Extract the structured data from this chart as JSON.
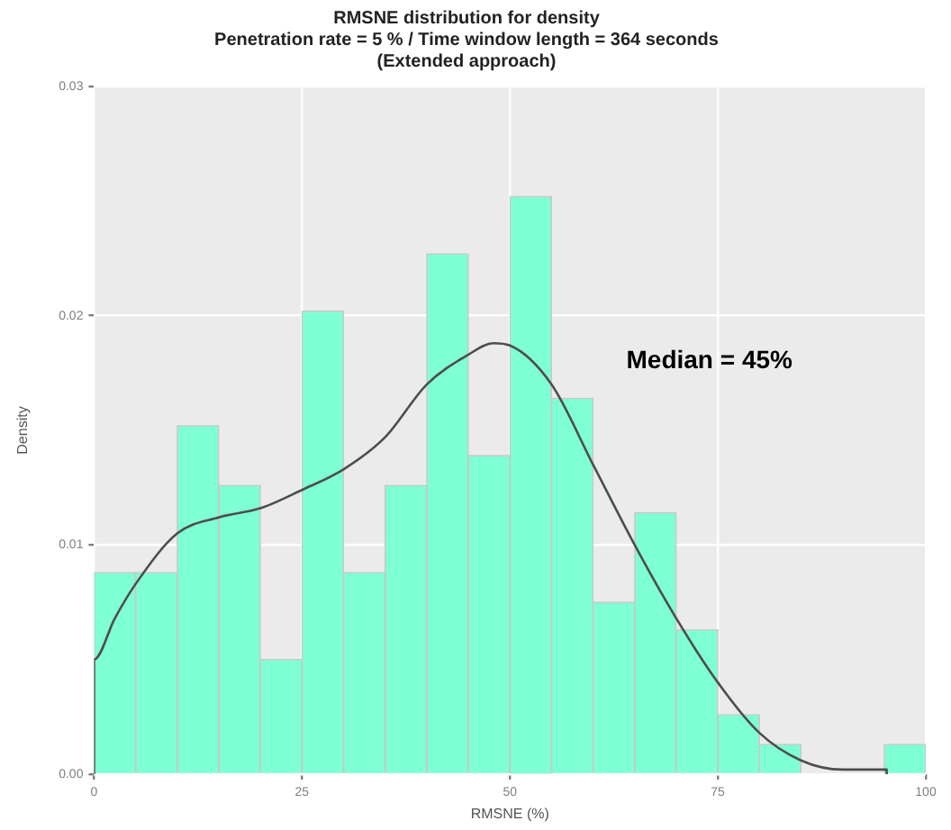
{
  "chart_data": {
    "type": "histogram",
    "title": "RMSNE distribution for density",
    "subtitle": [
      "Penetration rate = 5 % / Time window length = 364 seconds",
      "(Extended approach)"
    ],
    "xlabel": "RMSNE (%)",
    "ylabel": "Density",
    "bins": [
      0,
      5,
      10,
      15,
      20,
      25,
      30,
      35,
      40,
      45,
      50,
      55,
      60,
      65,
      70,
      75,
      80,
      85,
      90,
      95,
      100
    ],
    "values": [
      0.0088,
      0.0088,
      0.0152,
      0.0126,
      0.005,
      0.0202,
      0.0088,
      0.0126,
      0.0227,
      0.0139,
      0.0252,
      0.0164,
      0.0075,
      0.0114,
      0.0063,
      0.0026,
      0.0013,
      0,
      0,
      0.0013
    ],
    "color": "#7fffd4",
    "series": [
      {
        "type": "line",
        "color": "#4d4d4d",
        "x": [
          0,
          0,
          2.5,
          5,
          10,
          15,
          20,
          25,
          30,
          35,
          40,
          45,
          48,
          50,
          55,
          60,
          65,
          70,
          75,
          80,
          85,
          90,
          94,
          95.3,
          95.3
        ],
        "values": [
          0,
          0.005,
          0.0068,
          0.0083,
          0.0105,
          0.0112,
          0.0116,
          0.0124,
          0.0133,
          0.0147,
          0.017,
          0.0183,
          0.0188,
          0.0187,
          0.017,
          0.0135,
          0.01,
          0.0068,
          0.004,
          0.0018,
          0.0006,
          0.0002,
          0.0002,
          0.0002,
          0
        ]
      }
    ],
    "xlim": [
      0,
      100
    ],
    "xticks": [
      0,
      25,
      50,
      75,
      100
    ],
    "ylim": [
      0,
      0.03
    ],
    "yticks": [
      {
        "value": 0,
        "label": "0.00"
      },
      {
        "value": 0.01,
        "label": "0.01"
      },
      {
        "value": 0.02,
        "label": "0.02"
      },
      {
        "value": 0.03,
        "label": "0.03"
      }
    ],
    "grid": true,
    "legend": false,
    "marker": "none",
    "annotations": [
      "Median = 45%"
    ]
  }
}
